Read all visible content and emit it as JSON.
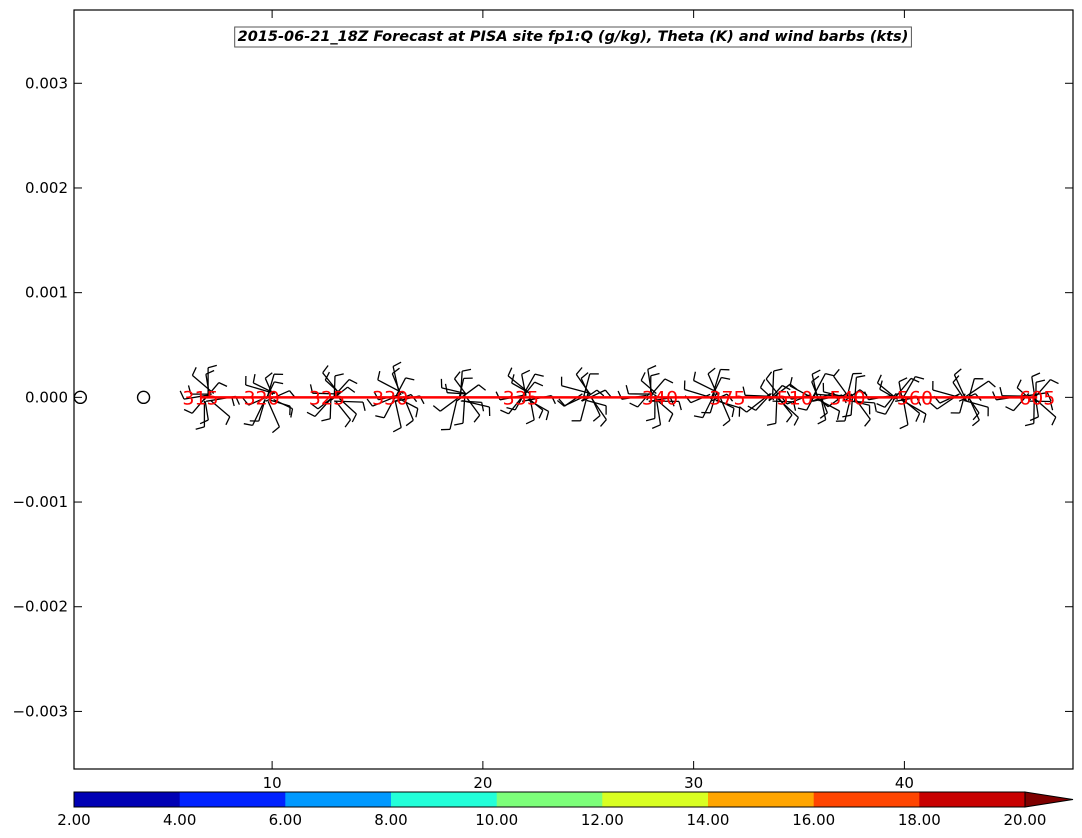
{
  "chart_data": {
    "type": "line",
    "title": "2015-06-21_18Z Forecast at PISA site fp1:Q (g/kg), Theta (K) and wind barbs (kts)",
    "xlabel": "",
    "ylabel": "",
    "xlim": [
      0.6,
      48.0
    ],
    "ylim": [
      -0.00355,
      0.0037
    ],
    "x_ticks": [
      10,
      20,
      30,
      40
    ],
    "x_tick_labels": [
      "10",
      "20",
      "30",
      "40"
    ],
    "y_ticks": [
      0.003,
      0.002,
      0.001,
      0.0,
      -0.001,
      -0.002,
      -0.003
    ],
    "y_tick_labels": [
      "0.003",
      "0.002",
      "0.001",
      "0.000",
      "−0.001",
      "−0.002",
      "−0.003"
    ],
    "theta_series": {
      "color": "#ff0000",
      "x": [
        6.6,
        9.5,
        12.6,
        15.6,
        21.8,
        28.4,
        31.6,
        34.8,
        37.3,
        40.5,
        46.3
      ],
      "values": [
        0,
        0,
        0,
        0,
        0,
        0,
        0,
        0,
        0,
        0,
        0
      ],
      "labels": [
        "315",
        "320",
        "325",
        "330",
        "335",
        "340",
        "375",
        "510",
        "540",
        "560",
        "605"
      ]
    },
    "calm_markers": {
      "x": [
        0.9,
        3.9
      ],
      "values": [
        0,
        0
      ]
    },
    "wind_barb_clusters": {
      "color": "#000000",
      "x": [
        7.0,
        9.9,
        13.0,
        16.0,
        19.0,
        22.0,
        24.9,
        28.0,
        31.0,
        33.8,
        35.8,
        37.4,
        39.7,
        42.8,
        46.0
      ],
      "values": [
        0,
        0,
        0,
        0,
        0,
        0,
        0,
        0,
        0,
        0,
        0,
        0,
        0,
        0,
        0
      ]
    },
    "colorbar": {
      "levels": [
        "2.00",
        "4.00",
        "6.00",
        "8.00",
        "10.00",
        "12.00",
        "14.00",
        "16.00",
        "18.00",
        "20.00"
      ],
      "colors": [
        "#0000b4",
        "#0022ff",
        "#0099ff",
        "#22ffd9",
        "#7dff7a",
        "#d9ff22",
        "#ffa500",
        "#ff4500",
        "#c80000",
        "#7f0000"
      ],
      "extend": "max"
    },
    "grid": false
  }
}
